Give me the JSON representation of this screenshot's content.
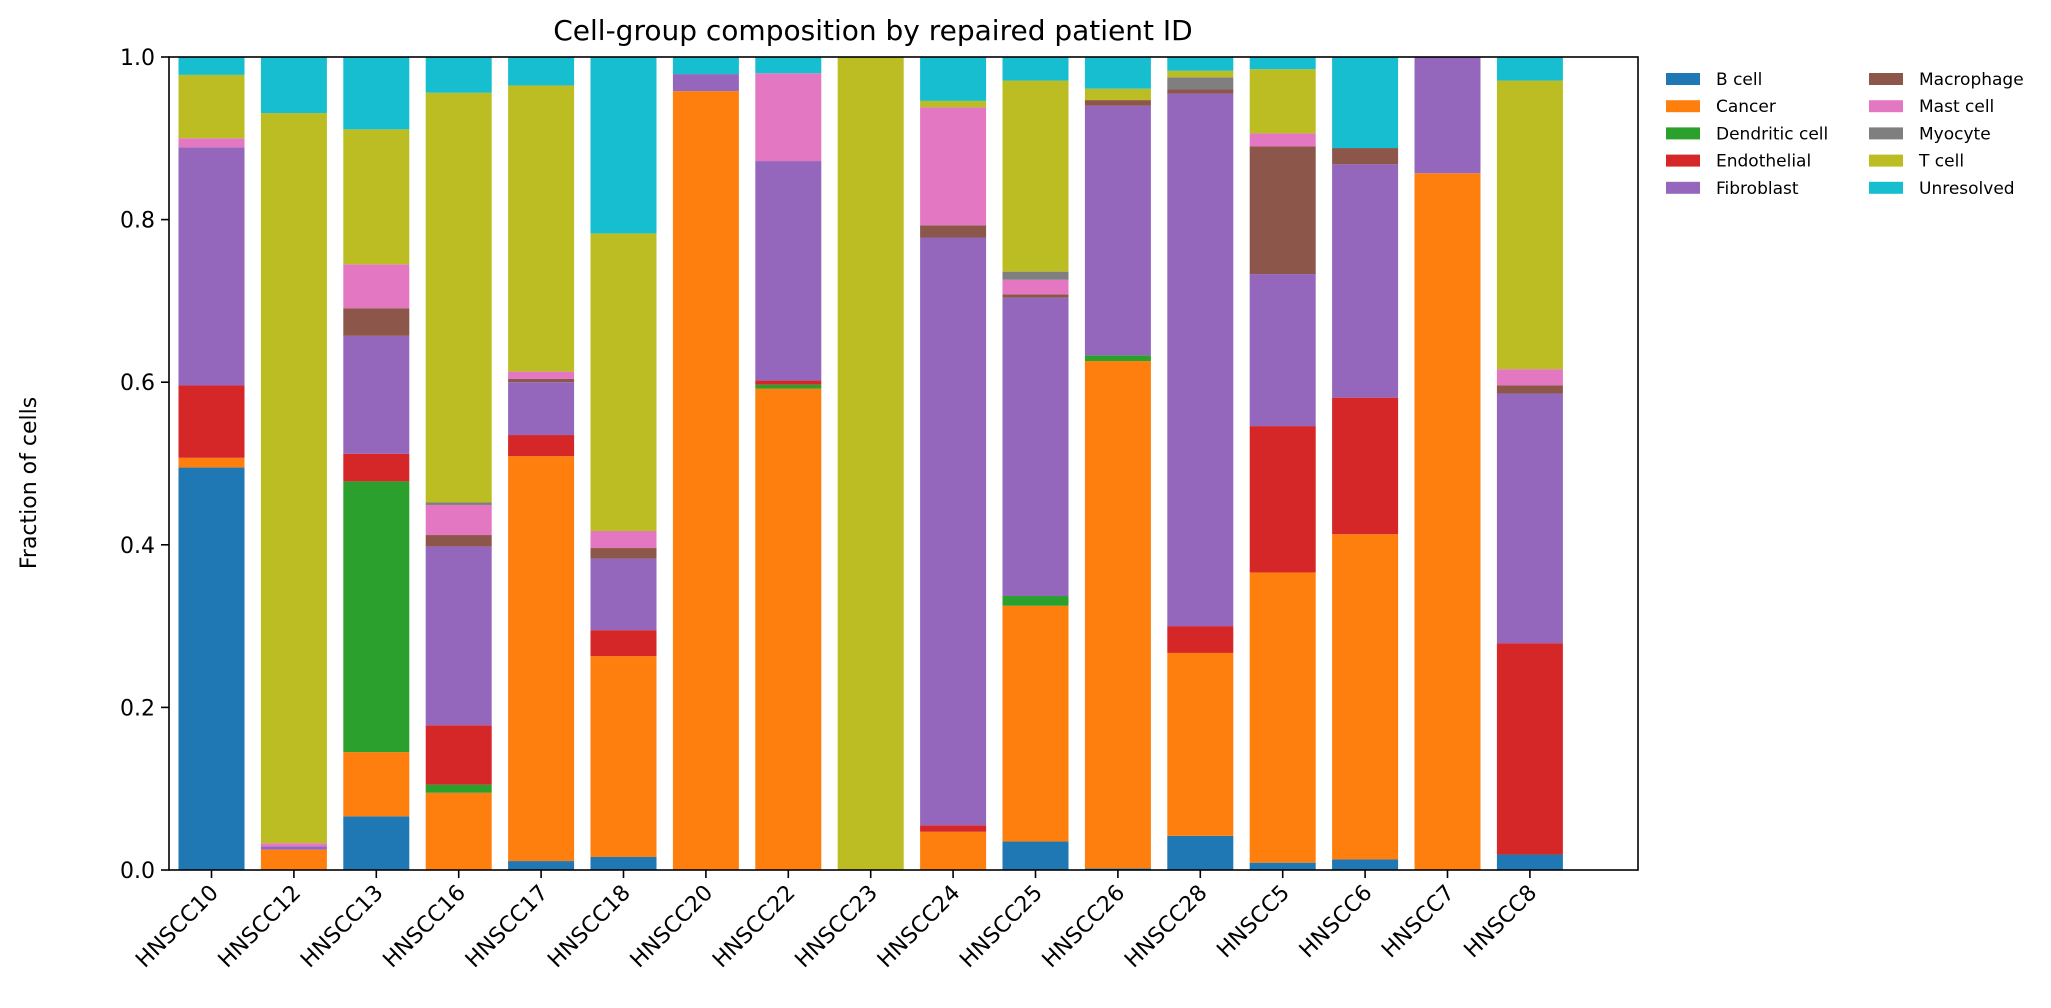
{
  "chart_data": {
    "type": "bar",
    "stacked": true,
    "title": "Cell-group composition by repaired patient ID",
    "xlabel": "",
    "ylabel": "Fraction of cells",
    "ylim": [
      0,
      1.0
    ],
    "yticks": [
      "0.0",
      "0.2",
      "0.4",
      "0.6",
      "0.8",
      "1.0"
    ],
    "grid": false,
    "legend_placement": "outside-top-right",
    "categories": [
      "HNSCC10",
      "HNSCC12",
      "HNSCC13",
      "HNSCC16",
      "HNSCC17",
      "HNSCC18",
      "HNSCC20",
      "HNSCC22",
      "HNSCC23",
      "HNSCC24",
      "HNSCC25",
      "HNSCC26",
      "HNSCC28",
      "HNSCC5",
      "HNSCC6",
      "HNSCC7",
      "HNSCC8"
    ],
    "series": [
      {
        "name": "B cell",
        "color": "#1f77b4",
        "values": [
          0.495,
          0.0,
          0.066,
          0.0,
          0.011,
          0.016,
          0.0,
          0.0,
          0.0,
          0.0,
          0.035,
          0.002,
          0.042,
          0.009,
          0.013,
          0.0,
          0.019
        ]
      },
      {
        "name": "Cancer",
        "color": "#ff7f0e",
        "values": [
          0.012,
          0.025,
          0.079,
          0.095,
          0.498,
          0.247,
          0.958,
          0.592,
          0.0,
          0.047,
          0.29,
          0.624,
          0.225,
          0.357,
          0.4,
          0.857,
          0.0
        ]
      },
      {
        "name": "Dendritic cell",
        "color": "#2ca02c",
        "values": [
          0.0,
          0.0,
          0.333,
          0.01,
          0.0,
          0.0,
          0.0,
          0.005,
          0.0,
          0.0,
          0.012,
          0.007,
          0.0,
          0.0,
          0.0,
          0.0,
          0.0
        ]
      },
      {
        "name": "Endothelial",
        "color": "#d62728",
        "values": [
          0.089,
          0.0,
          0.034,
          0.073,
          0.026,
          0.032,
          0.0,
          0.005,
          0.0,
          0.008,
          0.0,
          0.0,
          0.033,
          0.18,
          0.168,
          0.0,
          0.26
        ]
      },
      {
        "name": "Fibroblast",
        "color": "#9467bd",
        "values": [
          0.293,
          0.004,
          0.145,
          0.22,
          0.065,
          0.088,
          0.021,
          0.27,
          0.0,
          0.723,
          0.367,
          0.307,
          0.655,
          0.187,
          0.287,
          0.143,
          0.307
        ]
      },
      {
        "name": "Macrophage",
        "color": "#8c564b",
        "values": [
          0.0,
          0.0,
          0.034,
          0.014,
          0.004,
          0.013,
          0.0,
          0.0,
          0.0,
          0.015,
          0.004,
          0.007,
          0.005,
          0.157,
          0.02,
          0.0,
          0.01
        ]
      },
      {
        "name": "Mast cell",
        "color": "#e377c2",
        "values": [
          0.011,
          0.004,
          0.054,
          0.037,
          0.009,
          0.021,
          0.0,
          0.108,
          0.0,
          0.145,
          0.018,
          0.0,
          0.0,
          0.016,
          0.0,
          0.0,
          0.02
        ]
      },
      {
        "name": "Myocyte",
        "color": "#7f7f7f",
        "values": [
          0.0,
          0.0,
          0.0,
          0.003,
          0.0,
          0.0,
          0.0,
          0.0,
          0.0,
          0.0,
          0.01,
          0.0,
          0.015,
          0.0,
          0.0,
          0.0,
          0.0
        ]
      },
      {
        "name": "T cell",
        "color": "#bcbd22",
        "values": [
          0.078,
          0.898,
          0.166,
          0.504,
          0.352,
          0.366,
          0.0,
          0.0,
          1.0,
          0.008,
          0.235,
          0.014,
          0.008,
          0.079,
          0.0,
          0.0,
          0.355
        ]
      },
      {
        "name": "Unresolved",
        "color": "#17becf",
        "values": [
          0.022,
          0.069,
          0.089,
          0.044,
          0.035,
          0.217,
          0.021,
          0.02,
          0.0,
          0.054,
          0.029,
          0.039,
          0.017,
          0.015,
          0.112,
          0.0,
          0.029
        ]
      }
    ]
  }
}
